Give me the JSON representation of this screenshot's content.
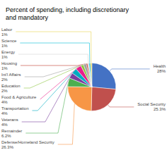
{
  "chart_data": {
    "type": "pie",
    "title": "Percent of spending, including discretionary\nand mandatory",
    "categories": [
      "Health",
      "Social Security",
      "Defense/Homeland Security",
      "Remainder",
      "Veterans",
      "Transportation",
      "Food & Agriculture",
      "Education",
      "Int'l Affairs",
      "Housing",
      "Energy",
      "Science",
      "Labor"
    ],
    "values": [
      28,
      25.3,
      26.3,
      6.2,
      4,
      4,
      4,
      2,
      2,
      1,
      1,
      1,
      1
    ],
    "value_labels": [
      "28%",
      "25.3%",
      "26.3%",
      "6.2%",
      "4%",
      "4%",
      "4%",
      "2%",
      "2%",
      "1%",
      "1%",
      "1%",
      "1%"
    ],
    "colors": [
      "#4472C4",
      "#C0504D",
      "#F79646",
      "#4CAF50",
      "#7B3F9E",
      "#00ACC1",
      "#E91E8C",
      "#8DC63F",
      "#A0A0A0",
      "#C0392B",
      "#D3D3D3",
      "#00BCD4",
      "#E8D44D"
    ],
    "data_labels": true
  }
}
